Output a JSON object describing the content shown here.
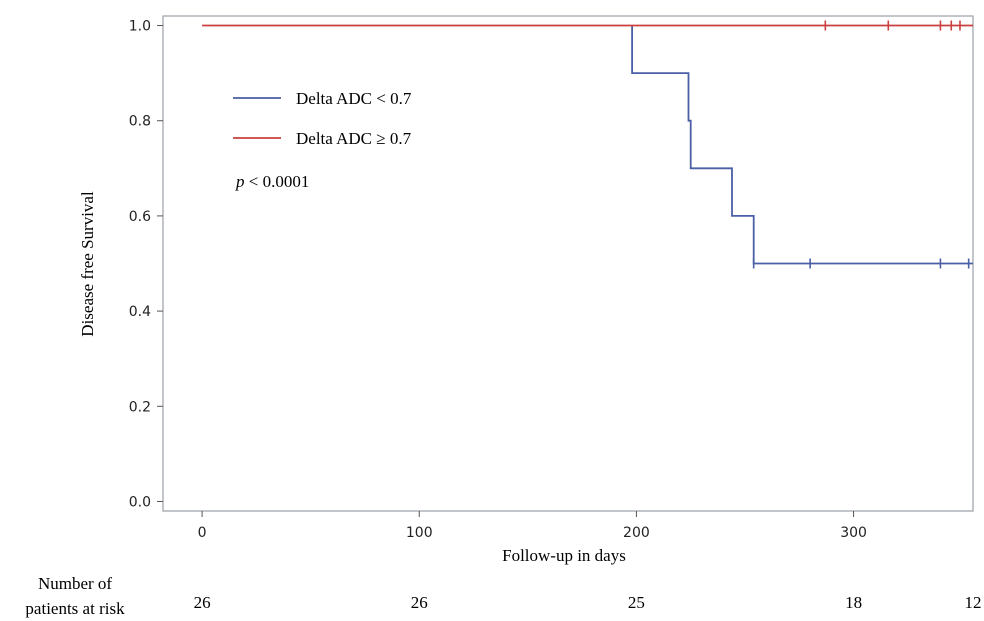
{
  "chart_data": {
    "type": "line",
    "subtype": "kaplan-meier",
    "xlabel": "Follow-up in days",
    "ylabel": "Disease free Survival",
    "xlim": [
      -18,
      355
    ],
    "ylim": [
      -0.02,
      1.02
    ],
    "xticks": [
      0,
      100,
      200,
      300
    ],
    "yticks": [
      0.0,
      0.2,
      0.4,
      0.6,
      0.8,
      1.0
    ],
    "xtick_labels": [
      "0",
      "100",
      "200",
      "300"
    ],
    "ytick_labels": [
      "0.0",
      "0.2",
      "0.4",
      "0.6",
      "0.8",
      "1.0"
    ],
    "grid": false,
    "legend_position": "upper-left inside",
    "series": [
      {
        "name": "Delta ADC < 0.7",
        "color": "#4a5fa5",
        "steps": [
          {
            "x": 198,
            "y": 1.0
          },
          {
            "x": 198,
            "y": 0.9
          },
          {
            "x": 224,
            "y": 0.9
          },
          {
            "x": 224,
            "y": 0.8
          },
          {
            "x": 225,
            "y": 0.8
          },
          {
            "x": 225,
            "y": 0.7
          },
          {
            "x": 244,
            "y": 0.7
          },
          {
            "x": 244,
            "y": 0.6
          },
          {
            "x": 254,
            "y": 0.6
          },
          {
            "x": 254,
            "y": 0.5
          },
          {
            "x": 355,
            "y": 0.5
          }
        ],
        "censored": [
          254,
          280,
          340,
          353
        ]
      },
      {
        "name": "Delta ADC ≥ 0.7",
        "color": "#cc3f3f",
        "steps": [
          {
            "x": 0,
            "y": 1.0
          },
          {
            "x": 355,
            "y": 1.0
          }
        ],
        "censored": [
          287,
          316,
          340,
          345,
          349
        ]
      }
    ],
    "annotation": {
      "italic": "p",
      "text": " < 0.0001"
    },
    "risk_table": {
      "label_line1": "Number of",
      "label_line2": "patients at risk",
      "counts": [
        {
          "x": 0,
          "n": "26"
        },
        {
          "x": 100,
          "n": "26"
        },
        {
          "x": 200,
          "n": "25"
        },
        {
          "x": 300,
          "n": "18"
        },
        {
          "x": 355,
          "n": "12"
        }
      ]
    }
  }
}
